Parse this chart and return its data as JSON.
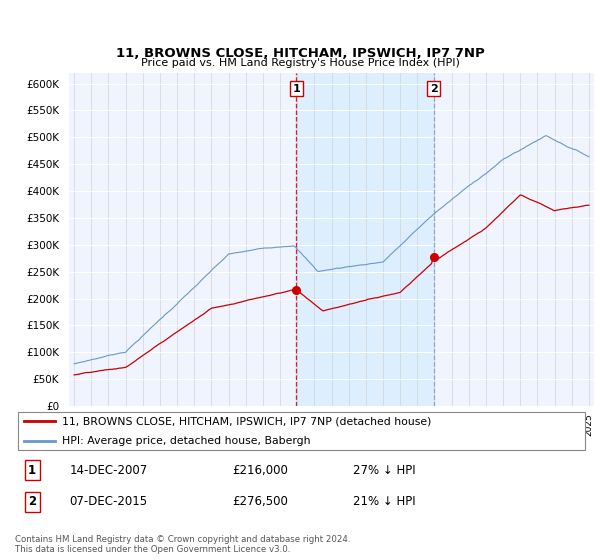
{
  "title": "11, BROWNS CLOSE, HITCHAM, IPSWICH, IP7 7NP",
  "subtitle": "Price paid vs. HM Land Registry's House Price Index (HPI)",
  "property_label": "11, BROWNS CLOSE, HITCHAM, IPSWICH, IP7 7NP (detached house)",
  "hpi_label": "HPI: Average price, detached house, Babergh",
  "property_color": "#cc0000",
  "hpi_color": "#6699cc",
  "shade_color": "#ddeeff",
  "background_color": "#f0f4ff",
  "sale1_date": "14-DEC-2007",
  "sale1_price": 216000,
  "sale1_pct": "27% ↓ HPI",
  "sale2_date": "07-DEC-2015",
  "sale2_price": 276500,
  "sale2_pct": "21% ↓ HPI",
  "ylim_min": 0,
  "ylim_max": 620000,
  "yticks": [
    0,
    50000,
    100000,
    150000,
    200000,
    250000,
    300000,
    350000,
    400000,
    450000,
    500000,
    550000,
    600000
  ],
  "footer": "Contains HM Land Registry data © Crown copyright and database right 2024.\nThis data is licensed under the Open Government Licence v3.0.",
  "xlim_min": 1994.7,
  "xlim_max": 2025.3
}
